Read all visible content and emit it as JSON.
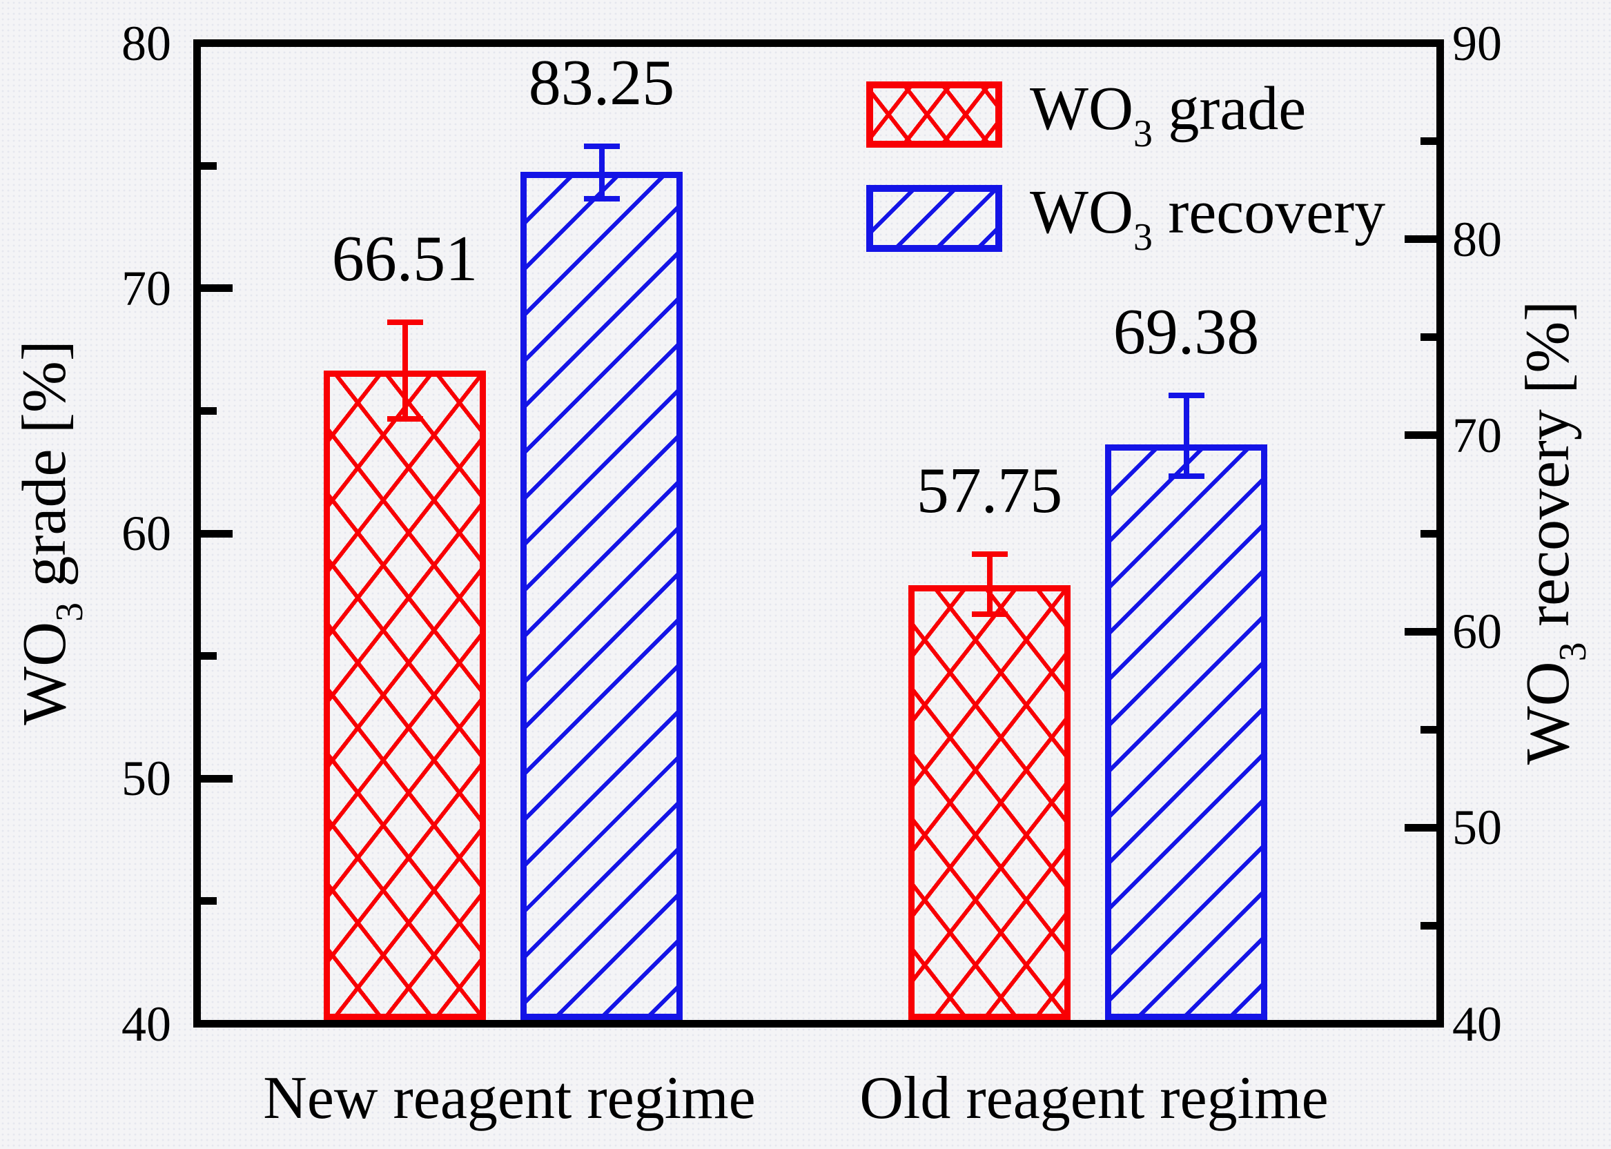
{
  "colors": {
    "grade_red": "#f80004",
    "recovery_blue": "#1414e6",
    "axis_black": "#000000",
    "background": "#f4f4f6"
  },
  "chart_data": {
    "type": "bar",
    "categories": [
      "New reagent regime",
      "Old reagent regime"
    ],
    "series": [
      {
        "name": "WO3 grade",
        "axis": "left",
        "color": "#f80004",
        "hatch": "crosshatch",
        "values": [
          66.51,
          57.75
        ],
        "value_labels": [
          "66.51",
          "57.75"
        ],
        "error_plus": [
          2.1,
          1.4
        ],
        "error_minus": [
          1.85,
          1.05
        ]
      },
      {
        "name": "WO3 recovery",
        "axis": "right",
        "color": "#1414e6",
        "hatch": "diagonal",
        "values": [
          83.25,
          69.38
        ],
        "value_labels": [
          "83.25",
          "69.38"
        ],
        "error_plus": [
          1.5,
          2.65
        ],
        "error_minus": [
          1.2,
          1.45
        ]
      }
    ],
    "left_axis": {
      "label": "WO3 grade [%]",
      "min": 40,
      "max": 80,
      "major_ticks": [
        40,
        50,
        60,
        70,
        80
      ],
      "minor_ticks": [
        45,
        55,
        65,
        75
      ]
    },
    "right_axis": {
      "label": "WO3 recovery [%]",
      "min": 40,
      "max": 90,
      "major_ticks": [
        40,
        50,
        60,
        70,
        80,
        90
      ],
      "minor_ticks": [
        45,
        55,
        65,
        75,
        85
      ]
    },
    "legend_position": "top-left-inside",
    "grid": false
  },
  "axis_titles": {
    "left": {
      "main": "WO",
      "sub": "3",
      "rest": " grade [%]"
    },
    "right": {
      "main": "WO",
      "sub": "3",
      "rest": " recovery [%]"
    }
  },
  "legend": {
    "items": [
      {
        "main": "WO",
        "sub": "3",
        "rest": " grade"
      },
      {
        "main": "WO",
        "sub": "3",
        "rest": " recovery"
      }
    ]
  }
}
